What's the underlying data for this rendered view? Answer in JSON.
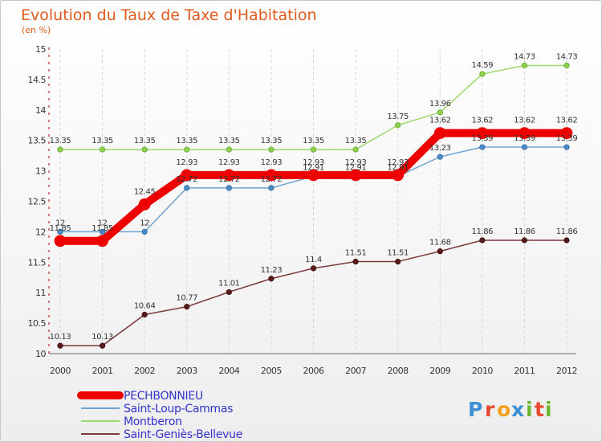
{
  "chart_data": {
    "type": "line",
    "title": "Evolution du Taux de Taxe d'Habitation",
    "subtitle": "(en %)",
    "x": [
      "2000",
      "2001",
      "2002",
      "2003",
      "2004",
      "2005",
      "2006",
      "2007",
      "2008",
      "2009",
      "2010",
      "2011",
      "2012"
    ],
    "ylim": [
      10,
      15
    ],
    "yticks": [
      "10",
      "10.5",
      "11",
      "11.5",
      "12",
      "12.5",
      "13",
      "13.5",
      "14",
      "14.5",
      "15"
    ],
    "grid": "vertical dashed",
    "legend_position": "bottom-left",
    "series": [
      {
        "name": "PECHBONNIEU",
        "color": "#ee0000",
        "values": [
          11.85,
          11.85,
          12.45,
          12.93,
          12.93,
          12.93,
          12.93,
          12.93,
          12.93,
          13.62,
          13.62,
          13.62,
          13.62
        ],
        "labels": [
          "11.85",
          "11.85",
          "12.45",
          "12.93",
          "12.93",
          "12.93",
          "12.93",
          "12.93",
          "12.93",
          "13.62",
          "13.62",
          "13.62",
          "13.62"
        ]
      },
      {
        "name": "Saint-Loup-Cammas",
        "color": "#6fa3d0",
        "values": [
          12,
          12,
          12,
          12.72,
          12.72,
          12.72,
          12.91,
          12.91,
          12.91,
          13.23,
          13.39,
          13.39,
          13.39
        ],
        "labels": [
          "12",
          "12",
          "12",
          "12.72",
          "12.72",
          "12.72",
          "12.91",
          "12.91",
          "12.91",
          "13.23",
          "13.39",
          "13.39",
          "13.39"
        ]
      },
      {
        "name": "Montberon",
        "color": "#9dd86a",
        "values": [
          13.35,
          13.35,
          13.35,
          13.35,
          13.35,
          13.35,
          13.35,
          13.35,
          13.75,
          13.96,
          14.59,
          14.73,
          14.73
        ],
        "labels": [
          "13.35",
          "13.35",
          "13.35",
          "13.35",
          "13.35",
          "13.35",
          "13.35",
          "13.35",
          "13.75",
          "13.96",
          "14.59",
          "14.73",
          "14.73"
        ]
      },
      {
        "name": "Saint-Geniès-Bellevue",
        "color": "#7a3a3a",
        "values": [
          10.13,
          10.13,
          10.64,
          10.77,
          11.01,
          11.23,
          11.4,
          11.51,
          11.51,
          11.68,
          11.86,
          11.86,
          11.86
        ],
        "labels": [
          "10.13",
          "10.13",
          "10.64",
          "10.77",
          "11.01",
          "11.23",
          "11.4",
          "11.51",
          "11.51",
          "11.68",
          "11.86",
          "11.86",
          "11.86"
        ]
      }
    ],
    "label_color": "#3333cc"
  },
  "logo": {
    "text": "Proxiti",
    "letters": [
      "P",
      "r",
      "o",
      "x",
      "i",
      "t",
      "i"
    ],
    "colors": [
      "#3d8fd6",
      "#e8482f",
      "#f2a21d",
      "#3d8fd6",
      "#6ab82f",
      "#e8482f",
      "#6ab82f"
    ]
  }
}
